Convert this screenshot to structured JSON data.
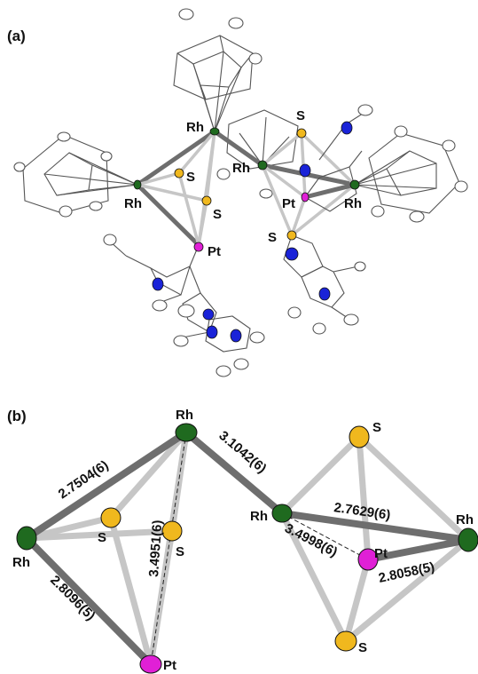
{
  "panel_a": {
    "label": "(a)",
    "atom_labels": {
      "rh_top": "Rh",
      "rh_left": "Rh",
      "rh_mid": "Rh",
      "rh_right": "Rh",
      "s_upper": "S",
      "s_lower": "S",
      "s_right_top": "S",
      "s_right_bottom": "S",
      "pt_left": "Pt",
      "pt_right": "Pt"
    }
  },
  "panel_b": {
    "label": "(b)",
    "atom_labels": {
      "rh_top": "Rh",
      "rh_left": "Rh",
      "rh_mid": "Rh",
      "rh_right": "Rh",
      "s_left_upper": "S",
      "s_left_lower": "S",
      "s_right_top": "S",
      "s_right_bottom": "S",
      "pt_left": "Pt",
      "pt_right": "Pt"
    },
    "distances": {
      "rh_rh_left": "2.7504(6)",
      "rh_pt_left": "2.8096(5)",
      "rh_pt_left_dashed": "3.4951(6)",
      "rh_rh_bridge": "3.1042(6)",
      "rh_rh_right": "2.7629(6)",
      "rh_pt_right_dashed": "3.4998(6)",
      "rh_pt_right": "2.8058(5)"
    }
  },
  "colors": {
    "rhodium": "#1f6a1f",
    "sulfur": "#f0b81e",
    "platinum": "#e020d6",
    "nitrogen": "#1a23d8",
    "carbon": "#ffffff",
    "bond_dark": "#6e6e6e",
    "bond_light": "#c6c6c6"
  }
}
